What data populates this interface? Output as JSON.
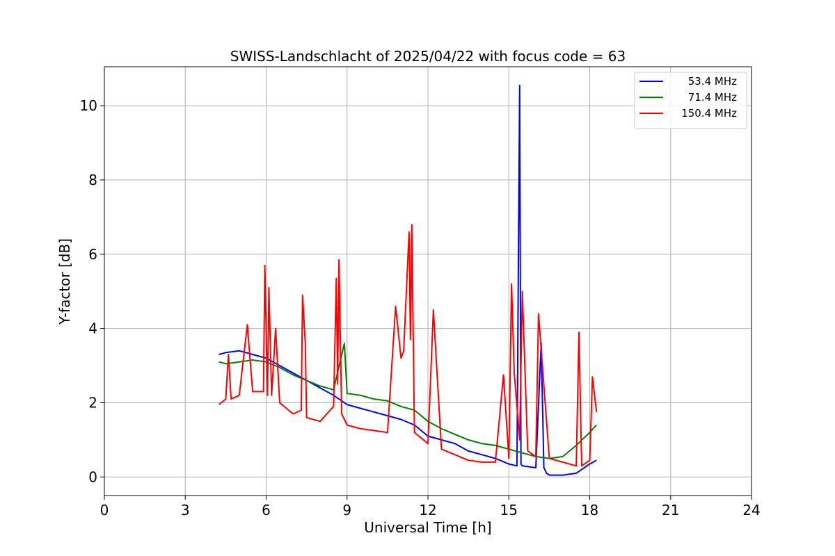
{
  "chart_data": {
    "type": "line",
    "title": "SWISS-Landschlacht of 2025/04/22 with focus code = 63",
    "xlabel": "Universal Time [h]",
    "ylabel": "Y-factor [dB]",
    "xlim": [
      0,
      24
    ],
    "ylim": [
      -0.5,
      11.05
    ],
    "xticks": [
      0,
      3,
      6,
      9,
      12,
      15,
      18,
      21,
      24
    ],
    "yticks": [
      0,
      2,
      4,
      6,
      8,
      10
    ],
    "grid": true,
    "legend_position": "top-right",
    "series": [
      {
        "name": "53.4 MHz",
        "color": "#0000ff",
        "x": [
          4.25,
          4.5,
          5.0,
          5.5,
          6.0,
          6.5,
          7.0,
          7.5,
          8.0,
          8.5,
          9.0,
          9.5,
          10.0,
          10.5,
          11.0,
          11.5,
          12.0,
          12.5,
          13.0,
          13.5,
          14.0,
          14.5,
          15.0,
          15.3,
          15.4,
          15.45,
          15.5,
          16.0,
          16.2,
          16.3,
          16.4,
          16.5,
          17.0,
          17.5,
          18.0,
          18.25
        ],
        "y": [
          3.3,
          3.35,
          3.4,
          3.3,
          3.2,
          3.0,
          2.8,
          2.6,
          2.4,
          2.2,
          1.95,
          1.85,
          1.75,
          1.65,
          1.55,
          1.4,
          1.1,
          1.0,
          0.9,
          0.7,
          0.6,
          0.5,
          0.35,
          0.3,
          10.55,
          0.35,
          0.3,
          0.25,
          3.6,
          0.25,
          0.1,
          0.05,
          0.05,
          0.1,
          0.35,
          0.45
        ]
      },
      {
        "name": "71.4 MHz",
        "color": "#008000",
        "x": [
          4.25,
          4.5,
          5.0,
          5.5,
          6.0,
          6.5,
          7.0,
          7.5,
          8.0,
          8.5,
          8.9,
          9.0,
          9.5,
          10.0,
          10.5,
          11.0,
          11.5,
          12.0,
          12.5,
          13.0,
          13.5,
          14.0,
          14.5,
          15.0,
          15.5,
          16.0,
          16.5,
          17.0,
          17.5,
          18.0,
          18.25
        ],
        "y": [
          3.1,
          3.05,
          3.1,
          3.15,
          3.1,
          2.95,
          2.75,
          2.6,
          2.45,
          2.35,
          3.6,
          2.25,
          2.2,
          2.1,
          2.05,
          1.9,
          1.8,
          1.5,
          1.3,
          1.15,
          1.0,
          0.9,
          0.85,
          0.75,
          0.65,
          0.55,
          0.5,
          0.55,
          0.85,
          1.2,
          1.4
        ]
      },
      {
        "name": "150.4 MHz",
        "color": "#ff0000",
        "x": [
          4.25,
          4.5,
          4.6,
          4.7,
          5.0,
          5.3,
          5.5,
          5.9,
          5.95,
          6.05,
          6.1,
          6.2,
          6.35,
          6.5,
          7.0,
          7.3,
          7.35,
          7.45,
          7.5,
          8.0,
          8.5,
          8.6,
          8.65,
          8.7,
          8.8,
          9.0,
          9.5,
          10.0,
          10.5,
          10.8,
          11.0,
          11.1,
          11.3,
          11.35,
          11.4,
          11.5,
          12.0,
          12.2,
          12.5,
          13.0,
          13.5,
          14.0,
          14.5,
          14.8,
          15.0,
          15.1,
          15.2,
          15.4,
          15.5,
          15.7,
          16.0,
          16.1,
          16.5,
          17.0,
          17.5,
          17.6,
          17.7,
          18.0,
          18.1,
          18.25
        ],
        "y": [
          1.95,
          2.1,
          3.3,
          2.1,
          2.2,
          4.1,
          2.3,
          2.3,
          5.7,
          2.2,
          5.1,
          2.2,
          4.0,
          2.0,
          1.7,
          1.8,
          4.9,
          3.6,
          1.6,
          1.5,
          1.9,
          5.35,
          2.5,
          5.85,
          1.7,
          1.4,
          1.3,
          1.25,
          1.2,
          4.6,
          3.2,
          3.4,
          6.6,
          3.7,
          6.8,
          1.2,
          0.9,
          4.5,
          0.75,
          0.6,
          0.45,
          0.4,
          0.4,
          2.75,
          0.5,
          5.2,
          2.8,
          1.0,
          5.0,
          0.7,
          0.55,
          4.4,
          0.5,
          0.4,
          0.3,
          3.9,
          0.3,
          0.45,
          2.7,
          1.75
        ]
      }
    ]
  }
}
